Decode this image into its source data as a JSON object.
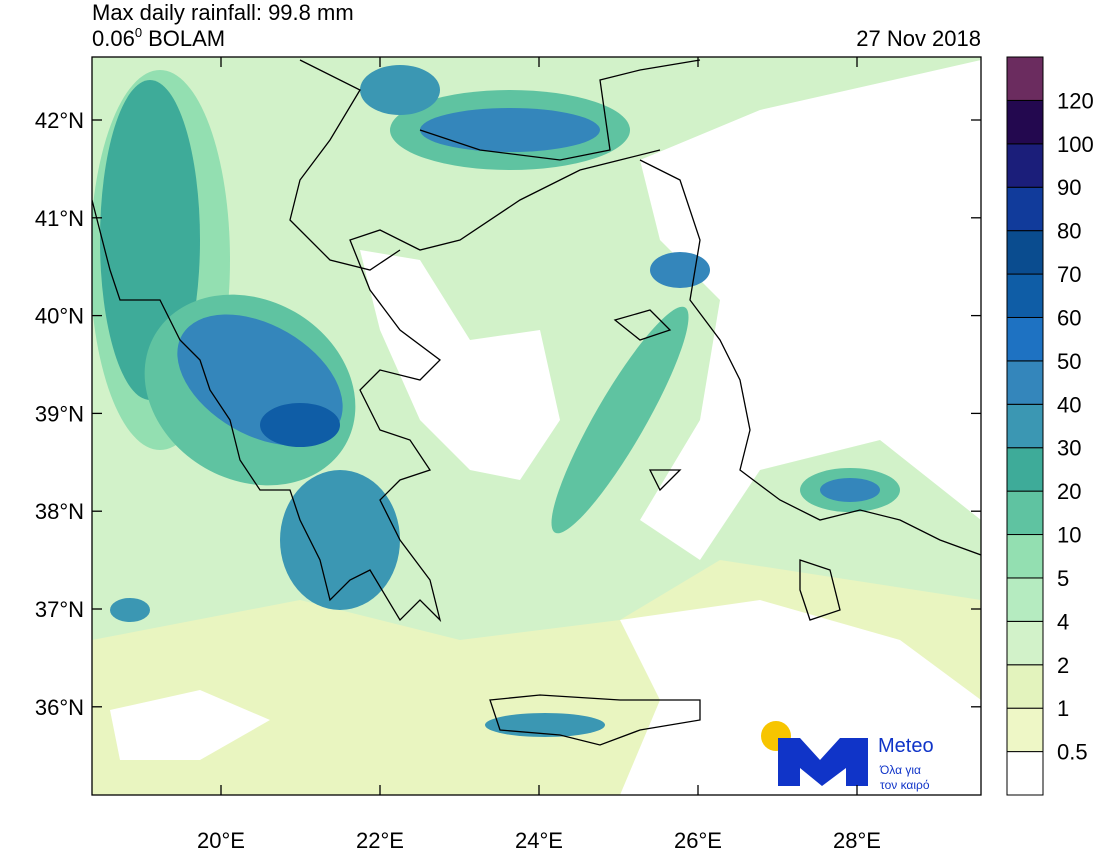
{
  "header": {
    "title": "Max daily rainfall: 99.8 mm",
    "resolution": "0.06",
    "degree_sign": "0",
    "model": "BOLAM",
    "date": "27 Nov 2018"
  },
  "map": {
    "lat_ticks": [
      {
        "value": 42,
        "label": "42°N"
      },
      {
        "value": 41,
        "label": "41°N"
      },
      {
        "value": 40,
        "label": "40°N"
      },
      {
        "value": 39,
        "label": "39°N"
      },
      {
        "value": 38,
        "label": "38°N"
      },
      {
        "value": 37,
        "label": "37°N"
      },
      {
        "value": 36,
        "label": "36°N"
      }
    ],
    "lon_ticks": [
      {
        "value": 20,
        "label": "20°E"
      },
      {
        "value": 22,
        "label": "22°E"
      },
      {
        "value": 24,
        "label": "24°E"
      },
      {
        "value": 26,
        "label": "26°E"
      },
      {
        "value": 28,
        "label": "28°E"
      }
    ]
  },
  "colorbar": {
    "levels": [
      0.5,
      1,
      2,
      4,
      5,
      10,
      20,
      30,
      40,
      50,
      60,
      70,
      80,
      90,
      100,
      120
    ],
    "colors": [
      "#ffffff",
      "#eef7c6",
      "#e3f3bd",
      "#d2f2c9",
      "#b5ebc0",
      "#93dfb1",
      "#5fc3a1",
      "#3eab99",
      "#3b97b3",
      "#3486bb",
      "#1e72c2",
      "#0f5da6",
      "#0a4c8f",
      "#113b9b",
      "#1b1e7a",
      "#23084f",
      "#6b2c5f"
    ]
  },
  "logo": {
    "name": "Meteo",
    "tagline_1": "Όλα για",
    "tagline_2": "τον καιρό"
  }
}
